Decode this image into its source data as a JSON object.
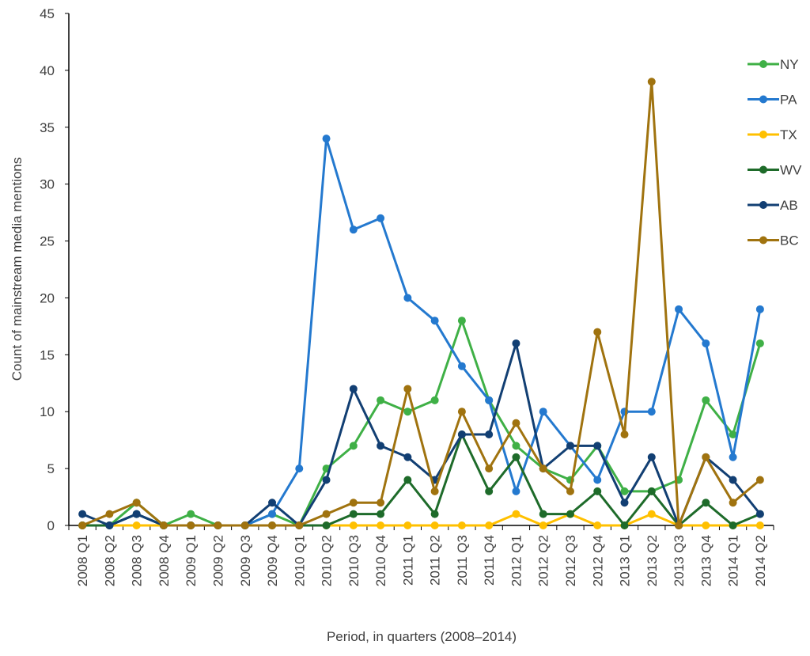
{
  "chart_data": {
    "type": "line",
    "xlabel": "Period, in quarters (2008–2014)",
    "ylabel": "Count of mainstream media mentions",
    "ylim": [
      0,
      45
    ],
    "yticks": [
      0,
      5,
      10,
      15,
      20,
      25,
      30,
      35,
      40,
      45
    ],
    "grid": false,
    "legend_position": "right",
    "categories": [
      "2008 Q1",
      "2008 Q2",
      "2008 Q3",
      "2008 Q4",
      "2009 Q1",
      "2009 Q2",
      "2009 Q3",
      "2009 Q4",
      "2010 Q1",
      "2010 Q2",
      "2010 Q3",
      "2010 Q4",
      "2011 Q1",
      "2011 Q2",
      "2011 Q3",
      "2011 Q4",
      "2012 Q1",
      "2012 Q2",
      "2012 Q3",
      "2012 Q4",
      "2013 Q1",
      "2013 Q2",
      "2013 Q3",
      "2013 Q4",
      "2014 Q1",
      "2014 Q2"
    ],
    "series": [
      {
        "name": "NY",
        "color": "#3fb046",
        "values": [
          0,
          0,
          2,
          0,
          1,
          0,
          0,
          1,
          0,
          5,
          7,
          11,
          10,
          11,
          18,
          11,
          7,
          5,
          4,
          7,
          3,
          3,
          4,
          11,
          8,
          16
        ]
      },
      {
        "name": "PA",
        "color": "#2479cf",
        "values": [
          0,
          0,
          1,
          0,
          0,
          0,
          0,
          1,
          5,
          34,
          26,
          27,
          20,
          18,
          14,
          11,
          3,
          10,
          7,
          4,
          10,
          10,
          19,
          16,
          6,
          19
        ]
      },
      {
        "name": "TX",
        "color": "#ffc000",
        "values": [
          0,
          0,
          0,
          0,
          0,
          0,
          0,
          0,
          0,
          0,
          0,
          0,
          0,
          0,
          0,
          0,
          1,
          0,
          1,
          0,
          0,
          1,
          0,
          0,
          0,
          0
        ]
      },
      {
        "name": "WV",
        "color": "#1e6b2a",
        "values": [
          0,
          0,
          1,
          0,
          0,
          0,
          0,
          0,
          0,
          0,
          1,
          1,
          4,
          1,
          8,
          3,
          6,
          1,
          1,
          3,
          0,
          3,
          0,
          2,
          0,
          1
        ]
      },
      {
        "name": "AB",
        "color": "#123f73",
        "values": [
          1,
          0,
          1,
          0,
          0,
          0,
          0,
          2,
          0,
          4,
          12,
          7,
          6,
          4,
          8,
          8,
          16,
          5,
          7,
          7,
          2,
          6,
          0,
          6,
          4,
          1
        ]
      },
      {
        "name": "BC",
        "color": "#a0730f",
        "values": [
          0,
          1,
          2,
          0,
          0,
          0,
          0,
          0,
          0,
          1,
          2,
          2,
          12,
          3,
          10,
          5,
          9,
          5,
          3,
          17,
          8,
          39,
          0,
          6,
          2,
          4
        ]
      }
    ]
  }
}
